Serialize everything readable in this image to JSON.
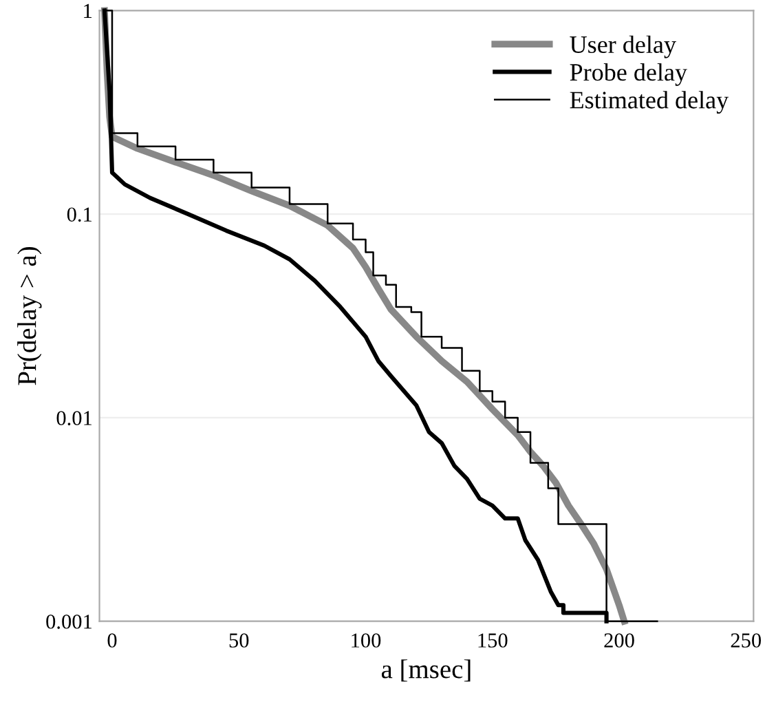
{
  "chart_data": {
    "type": "line",
    "xlabel": "a [msec]",
    "ylabel": "Pr(delay > a)",
    "log": "y",
    "xlim": [
      -5,
      253
    ],
    "ylim": [
      0.001,
      1
    ],
    "xticks": [
      0,
      50,
      100,
      150,
      200,
      250
    ],
    "yticks": [
      0.001,
      0.01,
      0.1,
      1
    ],
    "grid": "y",
    "legend": "top right",
    "series": [
      {
        "name": "User delay",
        "color": "#888888",
        "x": [
          -3,
          -2,
          -1,
          0,
          10,
          25,
          40,
          55,
          70,
          85,
          95,
          100,
          105,
          110,
          120,
          130,
          140,
          150,
          160,
          165,
          170,
          175,
          180,
          185,
          190,
          195,
          200,
          202
        ],
        "values": [
          1,
          0.5,
          0.3,
          0.24,
          0.21,
          0.18,
          0.155,
          0.13,
          0.11,
          0.088,
          0.068,
          0.055,
          0.043,
          0.034,
          0.025,
          0.019,
          0.015,
          0.011,
          0.0082,
          0.0068,
          0.0058,
          0.0048,
          0.0037,
          0.003,
          0.0024,
          0.0018,
          0.0012,
          0.001
        ]
      },
      {
        "name": "Probe delay",
        "color": "#000000",
        "x": [
          -3,
          -1,
          0,
          5,
          15,
          30,
          45,
          60,
          70,
          80,
          90,
          100,
          105,
          110,
          120,
          125,
          130,
          135,
          140,
          145,
          150,
          155,
          160,
          163,
          168,
          173,
          176,
          178,
          178,
          195,
          195
        ],
        "values": [
          1,
          0.4,
          0.16,
          0.14,
          0.12,
          0.1,
          0.083,
          0.07,
          0.06,
          0.047,
          0.035,
          0.025,
          0.019,
          0.016,
          0.0115,
          0.0085,
          0.0075,
          0.0058,
          0.005,
          0.004,
          0.0037,
          0.0032,
          0.0032,
          0.0025,
          0.002,
          0.0014,
          0.0012,
          0.0012,
          0.0011,
          0.0011,
          0.001
        ]
      },
      {
        "name": "Estimated delay",
        "color": "#000000",
        "type": "step",
        "x": [
          -3,
          0,
          10,
          25,
          40,
          55,
          70,
          85,
          95,
          100,
          103,
          108,
          112,
          118,
          122,
          130,
          138,
          145,
          150,
          155,
          160,
          162,
          165,
          170,
          172,
          176,
          195,
          215
        ],
        "values": [
          1,
          0.25,
          0.215,
          0.185,
          0.16,
          0.135,
          0.112,
          0.09,
          0.075,
          0.065,
          0.05,
          0.045,
          0.035,
          0.033,
          0.025,
          0.022,
          0.017,
          0.0135,
          0.012,
          0.01,
          0.0085,
          0.0085,
          0.006,
          0.006,
          0.0045,
          0.003,
          0.001,
          0.001
        ]
      }
    ]
  }
}
